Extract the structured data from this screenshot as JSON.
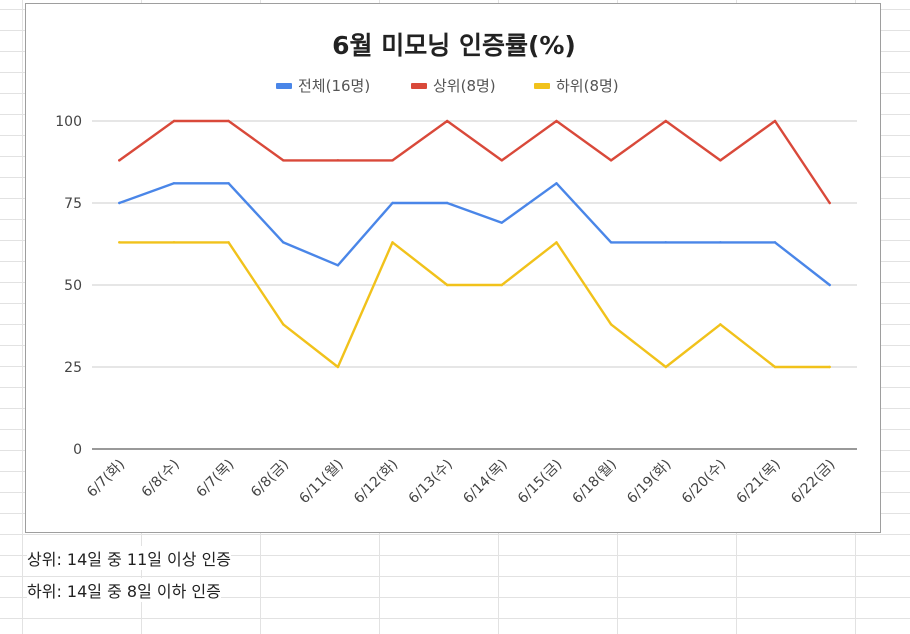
{
  "chart_data": {
    "type": "line",
    "title": "6월 미모닝 인증률(%)",
    "xlabel": "",
    "ylabel": "",
    "ylim": [
      0,
      100
    ],
    "yticks": [
      0,
      25,
      50,
      75,
      100
    ],
    "grid": true,
    "legend_position": "top",
    "categories": [
      "6/7(화)",
      "6/8(수)",
      "6/7(목)",
      "6/8(금)",
      "6/11(월)",
      "6/12(화)",
      "6/13(수)",
      "6/14(목)",
      "6/15(금)",
      "6/18(월)",
      "6/19(화)",
      "6/20(수)",
      "6/21(목)",
      "6/22(금)"
    ],
    "series": [
      {
        "name": "전체(16명)",
        "color": "#4a86e8",
        "values": [
          75,
          81,
          81,
          63,
          56,
          75,
          75,
          69,
          81,
          63,
          63,
          63,
          63,
          50
        ]
      },
      {
        "name": "상위(8명)",
        "color": "#d9493a",
        "values": [
          88,
          100,
          100,
          88,
          88,
          88,
          100,
          88,
          100,
          88,
          100,
          88,
          100,
          75
        ]
      },
      {
        "name": "하위(8명)",
        "color": "#f1c21b",
        "values": [
          63,
          63,
          63,
          38,
          25,
          63,
          50,
          50,
          63,
          38,
          25,
          38,
          25,
          25
        ]
      }
    ]
  },
  "notes": {
    "line1": "상위: 14일 중 11일 이상 인증",
    "line2": "하위: 14일 중 8일 이하 인증"
  }
}
